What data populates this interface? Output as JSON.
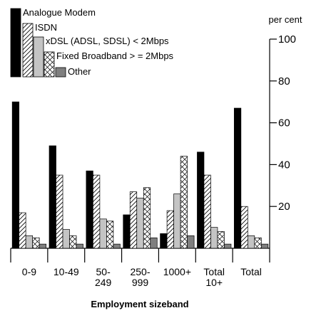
{
  "chart_data": {
    "type": "bar",
    "x_label": "Employment sizeband",
    "y_label": "per cent",
    "categories": [
      "0-9",
      "10-49",
      "50-\n249",
      "250-\n999",
      "1000+",
      "Total\n10+",
      "Total"
    ],
    "series": [
      {
        "name": "Analogue Modem",
        "color": "#000000",
        "pattern": "solid",
        "values": [
          70,
          49,
          37,
          16,
          7,
          46,
          67
        ]
      },
      {
        "name": "ISDN",
        "color": "#000000",
        "pattern": "diagonal",
        "values": [
          17,
          35,
          35,
          27,
          18,
          35,
          20
        ]
      },
      {
        "name": "xDSL (ADSL, SDSL) < 2Mbps",
        "color": "#c4c4c4",
        "pattern": "solid",
        "values": [
          6,
          9,
          14,
          24,
          26,
          10,
          6
        ]
      },
      {
        "name": "Fixed Broadband > = 2Mbps",
        "color": "#000000",
        "pattern": "cross",
        "values": [
          5,
          6,
          13,
          29,
          44,
          8,
          5
        ]
      },
      {
        "name": "Other",
        "color": "#7f7f7f",
        "pattern": "solid",
        "values": [
          2,
          2,
          2,
          5,
          6,
          2,
          2
        ]
      }
    ],
    "ylim": [
      0,
      100
    ],
    "yticks": [
      20,
      40,
      60,
      80,
      100
    ],
    "grid": false
  }
}
